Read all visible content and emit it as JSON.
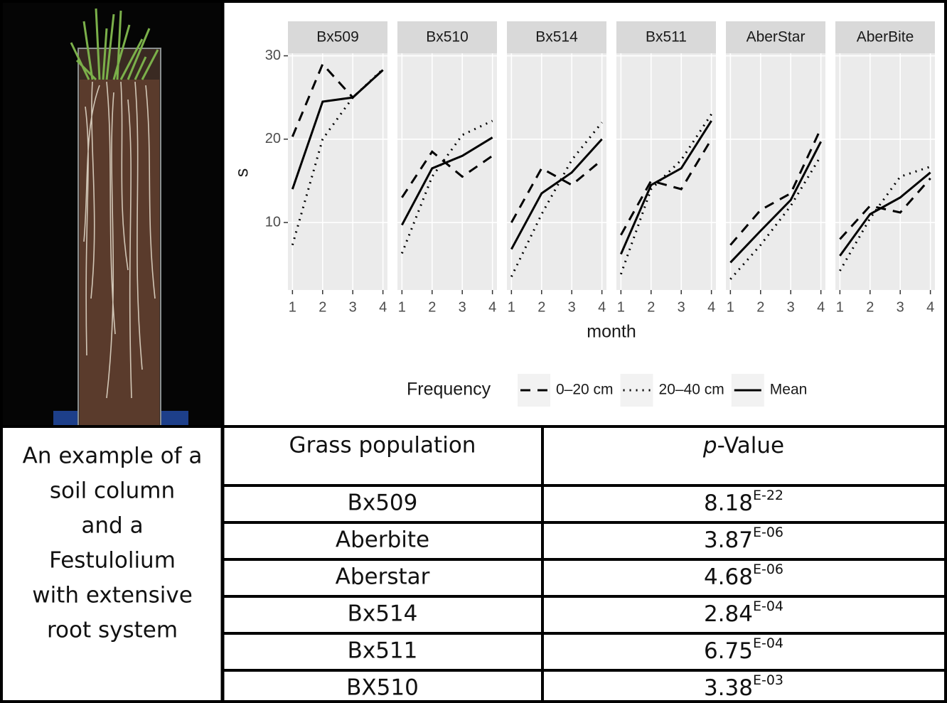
{
  "chart_data": {
    "type": "line",
    "x_label": "month",
    "y_label": "s",
    "legend_title": "Frequency",
    "x": [
      1,
      2,
      3,
      4
    ],
    "xlim": [
      0.85,
      4.15
    ],
    "xticks": [
      1,
      2,
      3,
      4
    ],
    "ylim": [
      1.9,
      30.3
    ],
    "yticks": [
      10,
      20,
      30
    ],
    "grid": true,
    "series": [
      {
        "name": "0–20 cm",
        "color": "#000000",
        "line_style": "dashed"
      },
      {
        "name": "20–40 cm",
        "color": "#000000",
        "line_style": "dotted"
      },
      {
        "name": "Mean",
        "color": "#000000",
        "line_style": "solid"
      }
    ],
    "facets": [
      {
        "title": "Bx509",
        "values": [
          [
            20.3,
            29,
            25,
            28.3
          ],
          [
            7.3,
            20,
            25,
            28.4
          ],
          [
            14,
            24.5,
            25,
            28.3
          ]
        ]
      },
      {
        "title": "Bx510",
        "values": [
          [
            13,
            18.5,
            15.5,
            18
          ],
          [
            6.3,
            15.5,
            20.5,
            22.2
          ],
          [
            9.7,
            16.5,
            18,
            20.2
          ]
        ]
      },
      {
        "title": "Bx514",
        "values": [
          [
            10,
            16.5,
            14.5,
            17.5
          ],
          [
            3.5,
            11,
            17.5,
            22
          ],
          [
            6.8,
            13.5,
            16,
            20
          ]
        ]
      },
      {
        "title": "Bx511",
        "values": [
          [
            8.5,
            15,
            14,
            20
          ],
          [
            3.8,
            14,
            17.5,
            23
          ],
          [
            6.2,
            14.5,
            16.5,
            22.2
          ]
        ]
      },
      {
        "title": "AberStar",
        "values": [
          [
            7.3,
            11.5,
            13.5,
            21.3
          ],
          [
            3.2,
            7.3,
            12,
            18
          ],
          [
            5.2,
            9,
            12.7,
            19.7
          ]
        ]
      },
      {
        "title": "AberBite",
        "values": [
          [
            8,
            12,
            11.2,
            15.3
          ],
          [
            4.2,
            10.5,
            15.5,
            16.7
          ],
          [
            6,
            11,
            13,
            16
          ]
        ]
      }
    ]
  },
  "caption": {
    "lines": [
      "An example of a",
      "soil  column",
      "and a",
      "Festulolium",
      "with extensive",
      "root system"
    ]
  },
  "table": {
    "header": {
      "population": "Grass population",
      "p_italic": "p",
      "p_rest": "-Value"
    },
    "rows": [
      {
        "population": "Bx509",
        "mantissa": "8.18",
        "exponent": "E-22"
      },
      {
        "population": "Aberbite",
        "mantissa": "3.87",
        "exponent": "E-06"
      },
      {
        "population": "Aberstar",
        "mantissa": "4.68",
        "exponent": "E-06"
      },
      {
        "population": "Bx514",
        "mantissa": "2.84",
        "exponent": "E-04"
      },
      {
        "population": "Bx511",
        "mantissa": "6.75",
        "exponent": "E-04"
      },
      {
        "population": "BX510",
        "mantissa": "3.38",
        "exponent": "E-03"
      }
    ]
  }
}
